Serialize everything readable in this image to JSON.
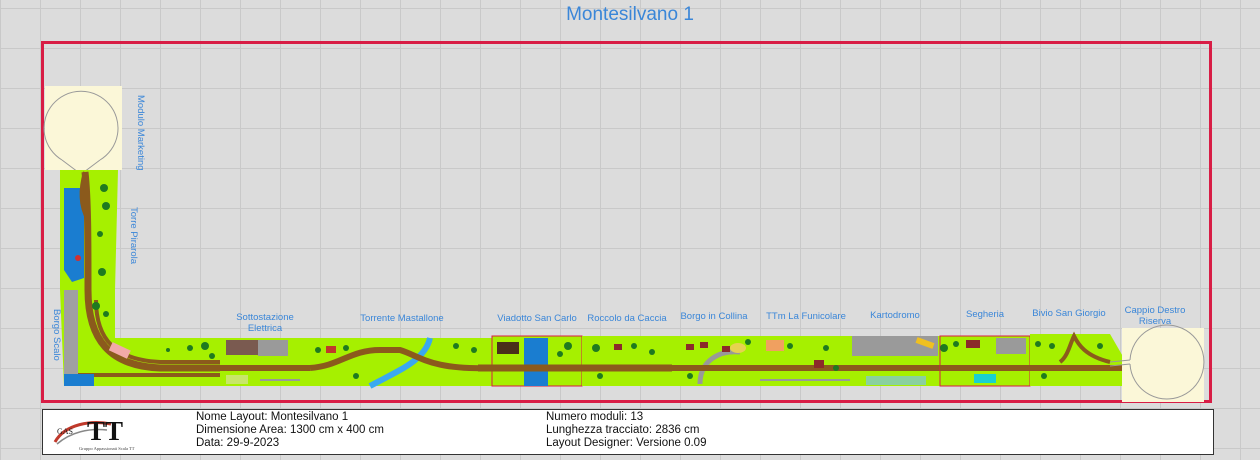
{
  "title": "Montesilvano 1",
  "colors": {
    "frame": "#d81d45",
    "label": "#3a86d8",
    "grass": "#a6f000",
    "track": "#8b5a1c",
    "water": "#1a7dd0",
    "loop_area": "#fbf7d8"
  },
  "modules": {
    "modulo_marketing": "Modulo Marketing",
    "torre_pirarola": "Torre Pirarola",
    "borgo_scalo": "Borgo Scalo",
    "sottostazione": "Sottostazione\nElettrica",
    "torrente": "Torrente Mastallone",
    "viadotto": "Viadotto San Carlo",
    "roccolo": "Roccolo da Caccia",
    "borgo_collina": "Borgo in Collina",
    "funicolare": "TTm La Funicolare",
    "kartodromo": "Kartodromo",
    "segheria": "Segheria",
    "bivio": "Bivio San Giorgio",
    "cappio": "Cappio Destro\nRiserva"
  },
  "info": {
    "nome": "Nome Layout: Montesilvano 1",
    "dimensione": "Dimensione Area: 1300 cm x 400 cm",
    "data": "Data: 29-9-2023",
    "numero": "Numero moduli: 13",
    "lunghezza": "Lunghezza tracciato: 2836 cm",
    "designer": "Layout Designer: Versione 0.09"
  },
  "logo": {
    "brand": "TT",
    "prefix": "GAS",
    "caption": "Gruppo Appassionati Scala TT"
  }
}
